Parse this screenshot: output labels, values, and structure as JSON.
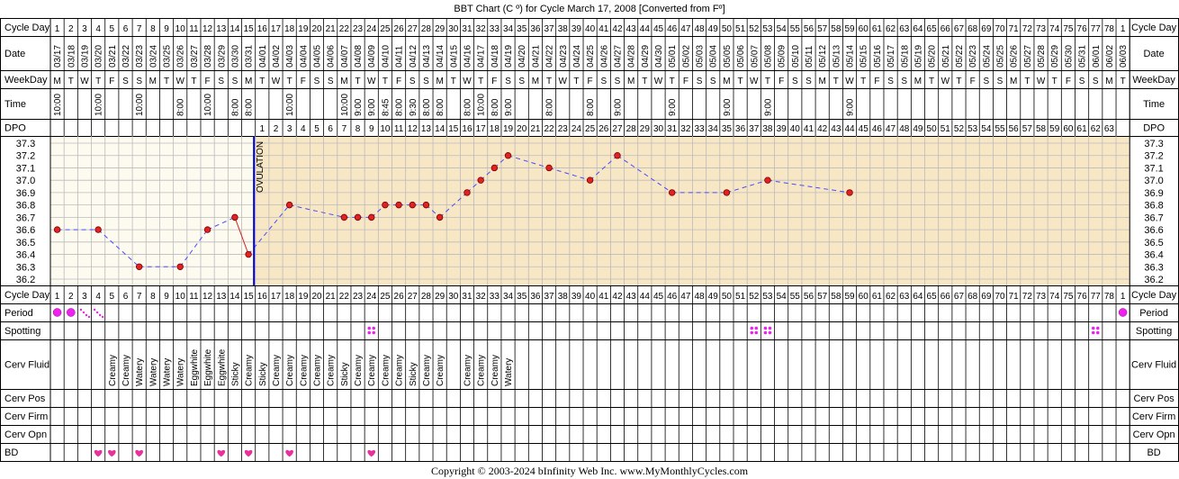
{
  "title": "BBT Chart (C º) for Cycle March 17, 2008  [Converted from Fº]",
  "copyright": "Copyright © 2003-2024 bInfinity Web Inc.     www.MyMonthlyCycles.com",
  "row_labels": {
    "cycle_day": "Cycle Day",
    "date": "Date",
    "weekday": "WeekDay",
    "time": "Time",
    "dpo": "DPO",
    "period": "Period",
    "spotting": "Spotting",
    "cerv_fluid": "Cerv Fluid",
    "cerv_pos": "Cerv Pos",
    "cerv_firm": "Cerv Firm",
    "cerv_opn": "Cerv Opn",
    "bd": "BD"
  },
  "columns": {
    "cycle_days": [
      "1",
      "2",
      "3",
      "4",
      "5",
      "6",
      "7",
      "8",
      "9",
      "10",
      "11",
      "12",
      "13",
      "14",
      "15",
      "16",
      "17",
      "18",
      "19",
      "20",
      "21",
      "22",
      "23",
      "24",
      "25",
      "26",
      "27",
      "28",
      "29",
      "30",
      "31",
      "32",
      "33",
      "34",
      "35",
      "36",
      "37",
      "38",
      "39",
      "40",
      "41",
      "42",
      "43",
      "44",
      "45",
      "46",
      "47",
      "48",
      "49",
      "50",
      "51",
      "52",
      "53",
      "54",
      "55",
      "56",
      "57",
      "58",
      "59",
      "60",
      "61",
      "62",
      "63",
      "64",
      "65",
      "66",
      "67",
      "68",
      "69",
      "70",
      "71",
      "72",
      "73",
      "74",
      "75",
      "76",
      "77",
      "78",
      "1"
    ],
    "dates": [
      "03/17",
      "03/18",
      "03/19",
      "03/20",
      "03/21",
      "03/22",
      "03/23",
      "03/24",
      "03/25",
      "03/26",
      "03/27",
      "03/28",
      "03/29",
      "03/30",
      "03/31",
      "04/01",
      "04/02",
      "04/03",
      "04/04",
      "04/05",
      "04/06",
      "04/07",
      "04/08",
      "04/09",
      "04/10",
      "04/11",
      "04/12",
      "04/13",
      "04/14",
      "04/15",
      "04/16",
      "04/17",
      "04/18",
      "04/19",
      "04/20",
      "04/21",
      "04/22",
      "04/23",
      "04/24",
      "04/25",
      "04/26",
      "04/27",
      "04/28",
      "04/29",
      "04/30",
      "05/01",
      "05/02",
      "05/03",
      "05/04",
      "05/05",
      "05/06",
      "05/07",
      "05/08",
      "05/09",
      "05/10",
      "05/11",
      "05/12",
      "05/13",
      "05/14",
      "05/15",
      "05/16",
      "05/17",
      "05/18",
      "05/19",
      "05/20",
      "05/21",
      "05/22",
      "05/23",
      "05/24",
      "05/25",
      "05/26",
      "05/27",
      "05/28",
      "05/29",
      "05/30",
      "05/31",
      "06/01",
      "06/02",
      "06/03"
    ],
    "weekdays": [
      "M",
      "T",
      "W",
      "T",
      "F",
      "S",
      "S",
      "M",
      "T",
      "W",
      "T",
      "F",
      "S",
      "S",
      "M",
      "T",
      "W",
      "T",
      "F",
      "S",
      "S",
      "M",
      "T",
      "W",
      "T",
      "F",
      "S",
      "S",
      "M",
      "T",
      "W",
      "T",
      "F",
      "S",
      "S",
      "M",
      "T",
      "W",
      "T",
      "F",
      "S",
      "S",
      "M",
      "T",
      "W",
      "T",
      "F",
      "S",
      "S",
      "M",
      "T",
      "W",
      "T",
      "F",
      "S",
      "S",
      "M",
      "T",
      "W",
      "T",
      "F",
      "S",
      "S",
      "M",
      "T",
      "W",
      "T",
      "F",
      "S",
      "S",
      "M",
      "T",
      "W",
      "T",
      "F",
      "S",
      "S",
      "M",
      "T"
    ],
    "times": [
      "10:00",
      "",
      "",
      "10:00",
      "",
      "",
      "10:00",
      "",
      "",
      "8:00",
      "",
      "10:00",
      "",
      "8:00",
      "8:00",
      "",
      "",
      "10:00",
      "",
      "",
      "",
      "10:00",
      "9:00",
      "9:00",
      "8:45",
      "8:00",
      "9:30",
      "8:00",
      "8:00",
      "",
      "8:00",
      "10:00",
      "8:00",
      "9:00",
      "",
      "",
      "8:00",
      "",
      "",
      "8:00",
      "",
      "9:00",
      "",
      "",
      "",
      "9:00",
      "",
      "",
      "",
      "9:00",
      "",
      "",
      "9:00",
      "",
      "",
      "",
      "",
      "",
      "9:00",
      "",
      "",
      "",
      "",
      "",
      "",
      "",
      "",
      "",
      "",
      "",
      "",
      "",
      "",
      "",
      "",
      "",
      "",
      "",
      ""
    ],
    "dpo": [
      "",
      "",
      "",
      "",
      "",
      "",
      "",
      "",
      "",
      "",
      "",
      "",
      "",
      "",
      "",
      "1",
      "2",
      "3",
      "4",
      "5",
      "6",
      "7",
      "8",
      "9",
      "10",
      "11",
      "12",
      "13",
      "14",
      "15",
      "16",
      "17",
      "18",
      "19",
      "20",
      "21",
      "22",
      "23",
      "24",
      "25",
      "26",
      "27",
      "28",
      "29",
      "30",
      "31",
      "32",
      "33",
      "34",
      "35",
      "36",
      "37",
      "38",
      "39",
      "40",
      "41",
      "42",
      "43",
      "44",
      "45",
      "46",
      "47",
      "48",
      "49",
      "50",
      "51",
      "52",
      "53",
      "54",
      "55",
      "56",
      "57",
      "58",
      "59",
      "60",
      "61",
      "62",
      "63",
      ""
    ],
    "cerv_fluid": [
      "",
      "",
      "",
      "",
      "Creamy",
      "Creamy",
      "Watery",
      "Watery",
      "Watery",
      "Watery",
      "Eggwhite",
      "Eggwhite",
      "Eggwhite",
      "Sticky",
      "Creamy",
      "Sticky",
      "Creamy",
      "Creamy",
      "Creamy",
      "Creamy",
      "Creamy",
      "Sticky",
      "Creamy",
      "Creamy",
      "Creamy",
      "Creamy",
      "Sticky",
      "Creamy",
      "Creamy",
      "",
      "Creamy",
      "Creamy",
      "Creamy",
      "Watery",
      "",
      "",
      "",
      "",
      "",
      "",
      "",
      "",
      "",
      "",
      "",
      "",
      "",
      "",
      "",
      "",
      "",
      "",
      "",
      "",
      "",
      "",
      "",
      "",
      "",
      "",
      "",
      "",
      "",
      "",
      "",
      "",
      "",
      "",
      "",
      "",
      "",
      "",
      "",
      "",
      "",
      "",
      "",
      "",
      ""
    ],
    "period": [
      "heavy",
      "heavy",
      "light",
      "light",
      "",
      "",
      "",
      "",
      "",
      "",
      "",
      "",
      "",
      "",
      "",
      "",
      "",
      "",
      "",
      "",
      "",
      "",
      "",
      "",
      "",
      "",
      "",
      "",
      "",
      "",
      "",
      "",
      "",
      "",
      "",
      "",
      "",
      "",
      "",
      "",
      "",
      "",
      "",
      "",
      "",
      "",
      "",
      "",
      "",
      "",
      "",
      "",
      "",
      "",
      "",
      "",
      "",
      "",
      "",
      "",
      "",
      "",
      "",
      "",
      "",
      "",
      "",
      "",
      "",
      "",
      "",
      "",
      "",
      "",
      "",
      "",
      "",
      "",
      "heavy"
    ],
    "spotting": [
      false,
      false,
      false,
      false,
      false,
      false,
      false,
      false,
      false,
      false,
      false,
      false,
      false,
      false,
      false,
      false,
      false,
      false,
      false,
      false,
      false,
      false,
      false,
      true,
      false,
      false,
      false,
      false,
      false,
      false,
      false,
      false,
      false,
      false,
      false,
      false,
      false,
      false,
      false,
      false,
      false,
      false,
      false,
      false,
      false,
      false,
      false,
      false,
      false,
      false,
      false,
      true,
      true,
      false,
      false,
      false,
      false,
      false,
      false,
      false,
      false,
      false,
      false,
      false,
      false,
      false,
      false,
      false,
      false,
      false,
      false,
      false,
      false,
      false,
      false,
      false,
      true,
      false,
      false
    ],
    "bd": [
      false,
      false,
      false,
      true,
      true,
      false,
      true,
      false,
      false,
      false,
      false,
      false,
      true,
      false,
      true,
      false,
      false,
      true,
      false,
      false,
      false,
      false,
      false,
      true,
      false,
      false,
      false,
      false,
      false,
      false,
      false,
      false,
      false,
      false,
      false,
      false,
      false,
      false,
      false,
      false,
      false,
      false,
      false,
      false,
      false,
      false,
      false,
      false,
      false,
      false,
      false,
      false,
      false,
      false,
      false,
      false,
      false,
      false,
      false,
      false,
      false,
      false,
      false,
      false,
      false,
      false,
      false,
      false,
      false,
      false,
      false,
      false,
      false,
      false,
      false,
      false,
      false,
      false,
      false
    ]
  },
  "chart_data": {
    "type": "line",
    "title": "BBT Chart (C º) for Cycle March 17, 2008  [Converted from Fº]",
    "xlabel": "Cycle Day",
    "ylabel": "",
    "ylim": [
      36.2,
      37.3
    ],
    "y_ticks": [
      "37.3",
      "37.2",
      "37.1",
      "37.0",
      "36.9",
      "36.8",
      "36.7",
      "36.6",
      "36.5",
      "36.4",
      "36.3",
      "36.2"
    ],
    "ovulation_day": 15,
    "ovulation_label": "OVULATION",
    "series": [
      {
        "x": [
          1,
          4,
          7,
          10,
          12,
          14,
          15,
          18,
          22,
          23,
          24,
          25,
          26,
          27,
          28,
          29,
          31,
          32,
          33,
          34,
          37,
          40,
          42,
          46,
          50,
          53,
          59
        ],
        "y": [
          36.6,
          36.6,
          36.3,
          36.3,
          36.6,
          36.7,
          36.4,
          36.8,
          36.7,
          36.7,
          36.7,
          36.8,
          36.8,
          36.8,
          36.8,
          36.7,
          36.9,
          37.0,
          37.1,
          37.2,
          37.1,
          37.0,
          37.2,
          36.9,
          36.9,
          37.0,
          36.9
        ]
      }
    ],
    "colors": {
      "pre_ovulation_bg": "#fdfaf0",
      "post_ovulation_bg": "#f8e7c5",
      "grid": "#bbbbbb",
      "line": "#4a4aff",
      "pre_line": "#d22222",
      "point": "#e02222",
      "ovulation_line": "#0000cc",
      "period": "#ee22ee",
      "bd": "#e8329b"
    }
  }
}
